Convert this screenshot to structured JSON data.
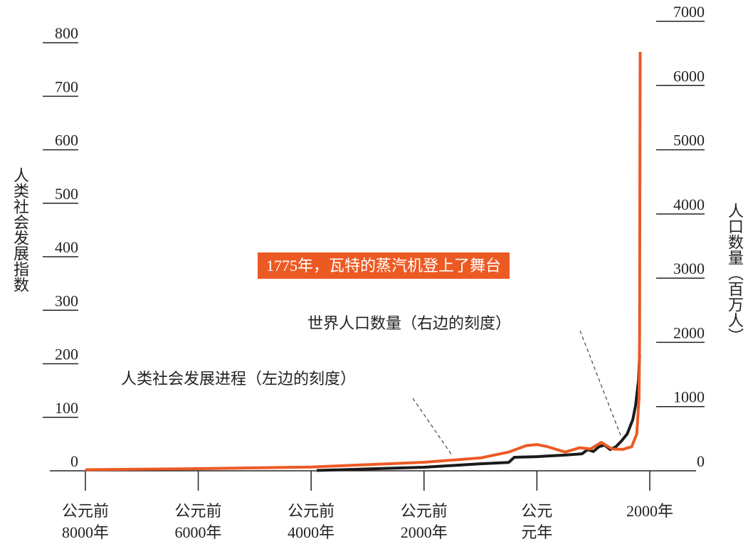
{
  "chart_data": {
    "type": "line",
    "y_label": "人类社会发展指数",
    "y2_label": "人口数量（百万人）",
    "annotations": [
      "1775年，瓦特的蒸汽机登上了舞台",
      "世界人口数量（右边的刻度）",
      "人类社会发展进程（左边的刻度）"
    ],
    "xlim": [
      -8630,
      2820
    ],
    "xticks": [
      {
        "value": -8000,
        "label": "公元前\n8000年"
      },
      {
        "value": -6000,
        "label": "公元前\n6000年"
      },
      {
        "value": -4000,
        "label": "公元前\n4000年"
      },
      {
        "value": -2000,
        "label": "公元前\n2000年"
      },
      {
        "value": 0,
        "label": "公元\n元年"
      },
      {
        "value": 2000,
        "label": "2000年"
      }
    ],
    "ylim": [
      0,
      840
    ],
    "yticks": [
      0,
      100,
      200,
      300,
      400,
      500,
      600,
      700,
      800
    ],
    "y2lim": [
      0,
      7000
    ],
    "y2ticks": [
      0,
      1000,
      2000,
      3000,
      4000,
      5000,
      6000,
      7000
    ],
    "series": [
      {
        "name": "人类社会发展进程",
        "color": "#ec5a24",
        "x": [
          -8000,
          -6000,
          -4000,
          -2000,
          -1000,
          -500,
          -190,
          0,
          190,
          500,
          760,
          950,
          1140,
          1330,
          1520,
          1680,
          1770,
          1810,
          1820,
          1825,
          1830
        ],
        "values": [
          2,
          4,
          7,
          16,
          24,
          35,
          47,
          49,
          45,
          35,
          43,
          41,
          53,
          41,
          40,
          45,
          69,
          136,
          250,
          560,
          783
        ]
      },
      {
        "name": "世界人口数量",
        "color": "#1a1a1a",
        "axis": "y2",
        "x": [
          -3900,
          -2000,
          -1000,
          -500,
          -400,
          0,
          500,
          800,
          900,
          1000,
          1100,
          1200,
          1300,
          1400,
          1500,
          1600,
          1700,
          1750,
          1800,
          1820
        ],
        "values": [
          5,
          55,
          110,
          130,
          210,
          220,
          245,
          265,
          330,
          300,
          375,
          400,
          330,
          375,
          465,
          575,
          800,
          1020,
          1400,
          1800
        ]
      }
    ]
  }
}
